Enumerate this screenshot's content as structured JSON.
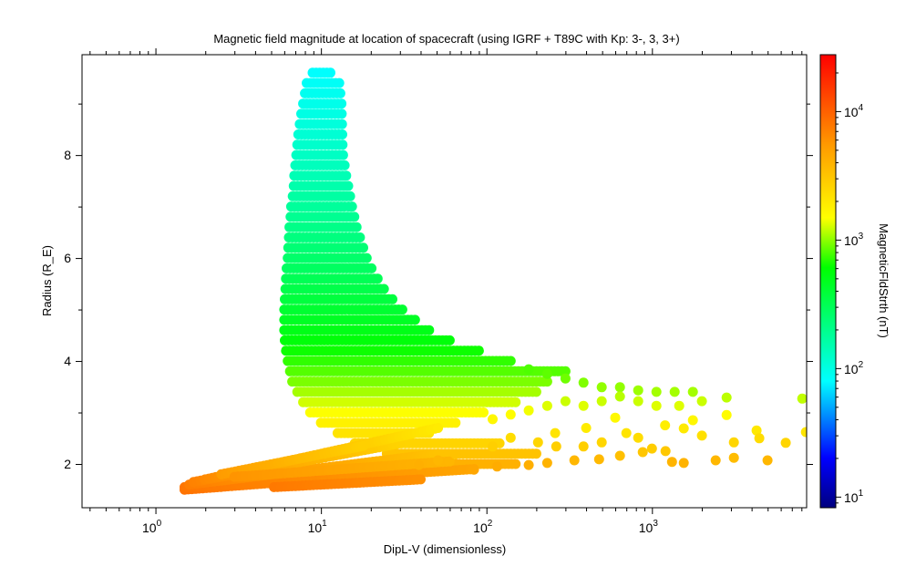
{
  "chart_data": {
    "type": "scatter",
    "title": "Magnetic field magnitude at location of spacecraft (using IGRF + T89C with Kp: 3-, 3, 3+)",
    "xlabel": "DipL-V (dimensionless)",
    "ylabel": "Radius (R_E)",
    "colorbar_label": "MagneticFldStrth (nT)",
    "xscale": "log",
    "xlim": [
      0.36,
      8600
    ],
    "ylim": [
      1.15,
      9.95
    ],
    "clim": [
      8.2,
      27500
    ],
    "x_ticks": [
      {
        "base": "10",
        "exp": "0",
        "value": 1
      },
      {
        "base": "10",
        "exp": "1",
        "value": 10
      },
      {
        "base": "10",
        "exp": "2",
        "value": 100
      },
      {
        "base": "10",
        "exp": "3",
        "value": 1000
      }
    ],
    "y_ticks": [
      {
        "label": "2",
        "value": 2
      },
      {
        "label": "4",
        "value": 4
      },
      {
        "label": "6",
        "value": 6
      },
      {
        "label": "8",
        "value": 8
      }
    ],
    "c_ticks": [
      {
        "base": "10",
        "exp": "1",
        "value": 10
      },
      {
        "base": "10",
        "exp": "2",
        "value": 100
      },
      {
        "base": "10",
        "exp": "3",
        "value": 1000
      },
      {
        "base": "10",
        "exp": "4",
        "value": 10000
      }
    ],
    "colormap": [
      {
        "t": 0.0,
        "color": "#00007f"
      },
      {
        "t": 0.11,
        "color": "#0000ff"
      },
      {
        "t": 0.28,
        "color": "#00ffff"
      },
      {
        "t": 0.53,
        "color": "#00ff00"
      },
      {
        "t": 0.64,
        "color": "#ffff00"
      },
      {
        "t": 0.8,
        "color": "#ff9a00"
      },
      {
        "t": 1.0,
        "color": "#ff0000"
      }
    ],
    "dense_bands_note_columns": [
      "y",
      "x_min",
      "x_max",
      "B_nT"
    ],
    "dense_bands": [
      [
        9.6,
        8.9,
        11.4,
        80
      ],
      [
        9.4,
        8.2,
        12.9,
        85
      ],
      [
        9.2,
        8.0,
        13.1,
        90
      ],
      [
        9.0,
        7.8,
        13.3,
        94
      ],
      [
        8.8,
        7.6,
        13.35,
        99
      ],
      [
        8.6,
        7.45,
        13.4,
        105
      ],
      [
        8.4,
        7.3,
        13.45,
        112
      ],
      [
        8.2,
        7.2,
        13.5,
        119
      ],
      [
        8.0,
        7.1,
        13.6,
        127
      ],
      [
        7.8,
        7.0,
        13.9,
        135
      ],
      [
        7.6,
        6.9,
        14.2,
        144
      ],
      [
        7.4,
        6.85,
        14.6,
        154
      ],
      [
        7.2,
        6.75,
        15.0,
        165
      ],
      [
        7.0,
        6.6,
        15.4,
        177
      ],
      [
        6.8,
        6.55,
        15.9,
        190
      ],
      [
        6.6,
        6.45,
        16.4,
        205
      ],
      [
        6.4,
        6.4,
        17.2,
        220
      ],
      [
        6.2,
        6.35,
        18.0,
        240
      ],
      [
        6.0,
        6.3,
        18.9,
        260
      ],
      [
        5.8,
        6.2,
        20.2,
        283
      ],
      [
        5.6,
        6.15,
        22,
        308
      ],
      [
        5.4,
        6.1,
        24,
        337
      ],
      [
        5.2,
        6.05,
        27,
        370
      ],
      [
        5.0,
        6.0,
        31,
        410
      ],
      [
        4.8,
        6.0,
        37,
        455
      ],
      [
        4.6,
        6.0,
        45,
        504
      ],
      [
        4.4,
        6.05,
        60,
        565
      ],
      [
        4.2,
        6.15,
        90,
        635
      ],
      [
        4.0,
        6.3,
        140,
        716
      ],
      [
        3.8,
        6.5,
        300,
        814
      ],
      [
        3.6,
        6.7,
        233,
        932
      ],
      [
        3.4,
        7.2,
        200,
        1080
      ],
      [
        3.2,
        7.8,
        150,
        1260
      ],
      [
        3.0,
        8.6,
        96,
        1470
      ],
      [
        2.8,
        10,
        65,
        1750
      ],
      [
        2.6,
        12.6,
        45,
        2100
      ],
      [
        2.4,
        16,
        120,
        2570
      ],
      [
        2.2,
        25,
        200,
        3190
      ],
      [
        2.0,
        40,
        150,
        4050
      ]
    ],
    "dense_segments_note_columns": [
      "x0",
      "y0",
      "x1",
      "y1",
      "B0_nT",
      "B1_nT"
    ],
    "dense_segments": [
      [
        1.5,
        1.5,
        24,
        1.8,
        8300,
        5300
      ],
      [
        1.5,
        1.55,
        84,
        1.9,
        8000,
        4700
      ],
      [
        1.6,
        1.6,
        51,
        2.2,
        7400,
        3200
      ],
      [
        1.7,
        1.65,
        30,
        2.4,
        7000,
        2600
      ],
      [
        2.0,
        1.7,
        51,
        2.7,
        6500,
        1900
      ],
      [
        2.5,
        1.8,
        18,
        2.35,
        5300,
        2700
      ],
      [
        3.0,
        1.75,
        60,
        2.05,
        5800,
        3800
      ],
      [
        5.2,
        1.55,
        40,
        1.7,
        7700,
        6000
      ]
    ],
    "points_note_columns": [
      "x",
      "y",
      "B_nT"
    ],
    "points": [
      [
        180,
        3.84,
        795
      ],
      [
        233,
        3.75,
        840
      ],
      [
        300,
        3.66,
        895
      ],
      [
        386,
        3.58,
        945
      ],
      [
        497,
        3.49,
        1010
      ],
      [
        641,
        3.49,
        1010
      ],
      [
        826,
        3.43,
        1050
      ],
      [
        1064,
        3.4,
        1075
      ],
      [
        1371,
        3.4,
        1075
      ],
      [
        1766,
        3.4,
        1075
      ],
      [
        2823,
        3.29,
        1170
      ],
      [
        8090,
        3.27,
        1185
      ],
      [
        4285,
        2.65,
        2000
      ],
      [
        4455,
        2.5,
        2320
      ],
      [
        6430,
        2.41,
        2550
      ],
      [
        8510,
        2.62,
        2060
      ],
      [
        2004,
        3.22,
        1230
      ],
      [
        1460,
        3.13,
        1320
      ],
      [
        1064,
        3.13,
        1320
      ],
      [
        826,
        3.22,
        1230
      ],
      [
        641,
        3.31,
        1150
      ],
      [
        497,
        3.22,
        1230
      ],
      [
        386,
        3.13,
        1320
      ],
      [
        300,
        3.22,
        1230
      ],
      [
        233,
        3.13,
        1320
      ],
      [
        180,
        3.04,
        1420
      ],
      [
        140,
        2.96,
        1520
      ],
      [
        109,
        2.87,
        1640
      ],
      [
        84,
        1.89,
        4670
      ],
      [
        116,
        1.95,
        4320
      ],
      [
        180,
        1.98,
        4160
      ],
      [
        233,
        2.02,
        3950
      ],
      [
        340,
        2.07,
        3720
      ],
      [
        479,
        2.09,
        3630
      ],
      [
        641,
        2.16,
        3340
      ],
      [
        880,
        2.23,
        3080
      ],
      [
        1208,
        2.25,
        3020
      ],
      [
        1321,
        2.04,
        3860
      ],
      [
        1556,
        2.02,
        3950
      ],
      [
        2426,
        2.07,
        3720
      ],
      [
        3126,
        2.12,
        3500
      ],
      [
        4990,
        2.07,
        3720
      ],
      [
        3126,
        2.42,
        2520
      ],
      [
        2004,
        2.55,
        2200
      ],
      [
        1556,
        2.69,
        1930
      ],
      [
        826,
        2.51,
        2300
      ],
      [
        497,
        2.42,
        2520
      ],
      [
        386,
        2.34,
        2730
      ],
      [
        264,
        2.34,
        2730
      ],
      [
        205,
        2.42,
        2520
      ],
      [
        140,
        2.51,
        2300
      ],
      [
        109,
        2.34,
        2730
      ],
      [
        65,
        2.19,
        3230
      ],
      [
        51,
        2.07,
        3720
      ],
      [
        39,
        1.98,
        4160
      ],
      [
        1766,
        2.85,
        1650
      ],
      [
        2823,
        2.95,
        1530
      ],
      [
        1200,
        2.75,
        1850
      ],
      [
        700,
        2.6,
        2100
      ],
      [
        1000,
        2.3,
        2800
      ],
      [
        600,
        2.9,
        1600
      ],
      [
        400,
        2.7,
        1900
      ],
      [
        260,
        2.6,
        2100
      ]
    ]
  }
}
